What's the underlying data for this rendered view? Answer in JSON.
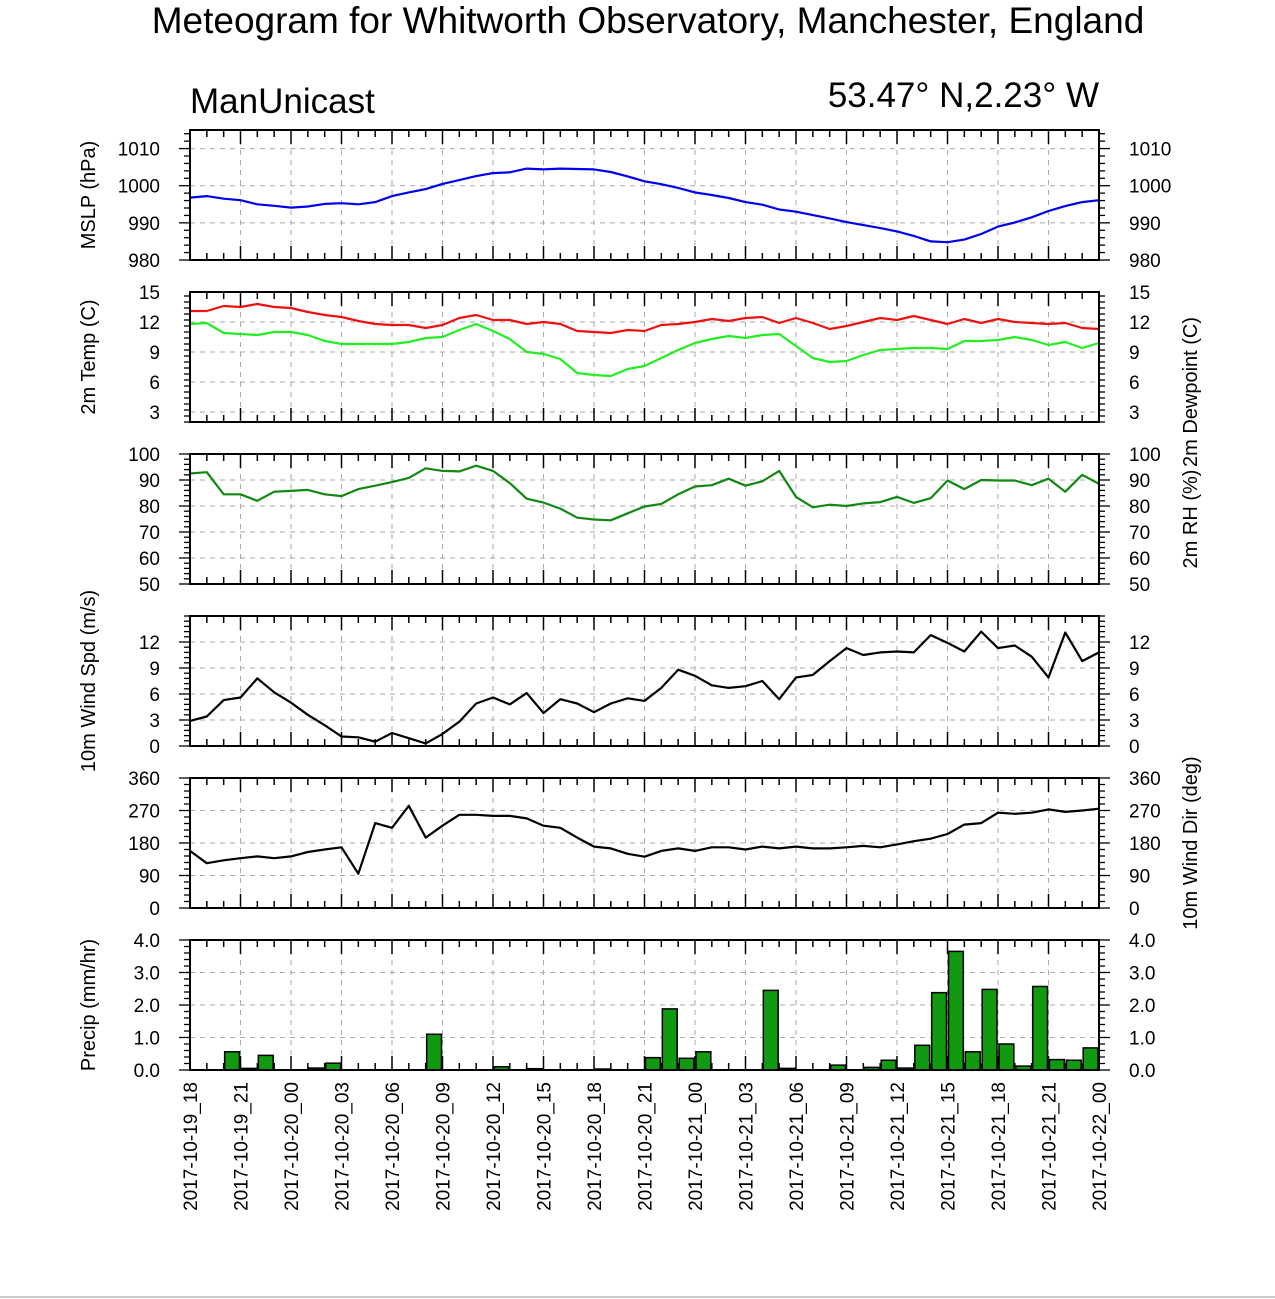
{
  "title": "Meteogram for Whitworth Observatory, Manchester, England",
  "source_label": "ManUnicast",
  "location": "53.47° N,2.23° W",
  "colors": {
    "mslp": "#0000ee",
    "temp": "#ee1111",
    "dewpoint": "#22ee22",
    "rh": "#118811",
    "wind": "#000000",
    "precip": "#119911"
  },
  "chart_data": [
    {
      "type": "line",
      "id": "mslp",
      "ylabel_left": "MSLP (hPa)",
      "ylabel_right": "",
      "ylim": [
        980,
        1015
      ],
      "yticks": [
        980,
        990,
        1000,
        1010
      ],
      "grid": true,
      "series": [
        {
          "color_key": "mslp",
          "x": [
            0,
            1,
            2,
            3,
            4,
            5,
            6,
            7,
            8,
            9,
            10,
            11,
            12,
            13,
            14,
            15,
            16,
            17,
            18,
            19,
            20,
            21,
            22,
            23,
            24,
            25,
            26,
            27,
            28,
            29,
            30,
            31,
            32,
            33,
            34,
            35,
            36,
            37,
            38,
            39,
            40,
            41,
            42,
            43,
            44,
            45,
            46,
            47,
            48,
            49,
            50,
            51,
            52,
            53,
            54
          ],
          "y": [
            996.8,
            997.2,
            996.5,
            996.1,
            995.0,
            994.6,
            994.1,
            994.4,
            995.1,
            995.3,
            995.0,
            995.6,
            997.2,
            998.2,
            999.1,
            1000.5,
            1001.5,
            1002.6,
            1003.4,
            1003.6,
            1004.6,
            1004.4,
            1004.6,
            1004.5,
            1004.4,
            1003.7,
            1002.5,
            1001.2,
            1000.4,
            999.4,
            998.2,
            997.5,
            996.7,
            995.6,
            994.9,
            993.6,
            993.0,
            992.1,
            991.2,
            990.2,
            989.4,
            988.6,
            987.7,
            986.5,
            985.0,
            984.8,
            985.5,
            987.0,
            989.0,
            990.1,
            991.5,
            993.2,
            994.5,
            995.6,
            996.1
          ]
        }
      ]
    },
    {
      "type": "line",
      "id": "temp",
      "ylabel_left": "2m Temp (C)",
      "ylabel_right": "2m Dewpoint (C)",
      "ylim": [
        2,
        15
      ],
      "yticks": [
        3,
        6,
        9,
        12,
        15
      ],
      "grid": true,
      "series": [
        {
          "color_key": "temp",
          "x": [
            0,
            1,
            2,
            3,
            4,
            5,
            6,
            7,
            8,
            9,
            10,
            11,
            12,
            13,
            14,
            15,
            16,
            17,
            18,
            19,
            20,
            21,
            22,
            23,
            24,
            25,
            26,
            27,
            28,
            29,
            30,
            31,
            32,
            33,
            34,
            35,
            36,
            37,
            38,
            39,
            40,
            41,
            42,
            43,
            44,
            45,
            46,
            47,
            48,
            49,
            50,
            51,
            52,
            53,
            54
          ],
          "y": [
            13.1,
            13.1,
            13.6,
            13.5,
            13.8,
            13.5,
            13.4,
            13.0,
            12.7,
            12.5,
            12.1,
            11.8,
            11.7,
            11.7,
            11.4,
            11.7,
            12.4,
            12.7,
            12.2,
            12.2,
            11.8,
            12.0,
            11.8,
            11.1,
            11.0,
            10.9,
            11.2,
            11.1,
            11.7,
            11.8,
            12.0,
            12.3,
            12.1,
            12.4,
            12.5,
            11.9,
            12.4,
            11.9,
            11.3,
            11.6,
            12.0,
            12.4,
            12.2,
            12.6,
            12.2,
            11.8,
            12.3,
            11.9,
            12.3,
            12.0,
            11.9,
            11.8,
            11.9,
            11.4,
            11.3
          ]
        },
        {
          "color_key": "dewpoint",
          "x": [
            0,
            1,
            2,
            3,
            4,
            5,
            6,
            7,
            8,
            9,
            10,
            11,
            12,
            13,
            14,
            15,
            16,
            17,
            18,
            19,
            20,
            21,
            22,
            23,
            24,
            25,
            26,
            27,
            28,
            29,
            30,
            31,
            32,
            33,
            34,
            35,
            36,
            37,
            38,
            39,
            40,
            41,
            42,
            43,
            44,
            45,
            46,
            47,
            48,
            49,
            50,
            51,
            52,
            53,
            54
          ],
          "y": [
            11.8,
            11.9,
            10.9,
            10.8,
            10.7,
            11.0,
            11.0,
            10.7,
            10.1,
            9.8,
            9.8,
            9.8,
            9.8,
            10.0,
            10.4,
            10.5,
            11.2,
            11.8,
            11.1,
            10.3,
            9.0,
            8.8,
            8.3,
            6.9,
            6.7,
            6.6,
            7.3,
            7.6,
            8.4,
            9.2,
            9.9,
            10.3,
            10.6,
            10.4,
            10.7,
            10.8,
            9.6,
            8.4,
            8.0,
            8.1,
            8.7,
            9.2,
            9.3,
            9.4,
            9.4,
            9.3,
            10.1,
            10.1,
            10.2,
            10.5,
            10.2,
            9.7,
            10.0,
            9.4,
            9.9
          ]
        }
      ]
    },
    {
      "type": "line",
      "id": "rh",
      "ylabel_left": "",
      "ylabel_right": "2m RH (%)",
      "ylim": [
        50,
        100
      ],
      "yticks": [
        50,
        60,
        70,
        80,
        90,
        100
      ],
      "grid": true,
      "series": [
        {
          "color_key": "rh",
          "x": [
            0,
            1,
            2,
            3,
            4,
            5,
            6,
            7,
            8,
            9,
            10,
            11,
            12,
            13,
            14,
            15,
            16,
            17,
            18,
            19,
            20,
            21,
            22,
            23,
            24,
            25,
            26,
            27,
            28,
            29,
            30,
            31,
            32,
            33,
            34,
            35,
            36,
            37,
            38,
            39,
            40,
            41,
            42,
            43,
            44,
            45,
            46,
            47,
            48,
            49,
            50,
            51,
            52,
            53,
            54
          ],
          "y": [
            92.5,
            93.0,
            84.5,
            84.5,
            82.0,
            85.5,
            85.8,
            86.2,
            84.5,
            83.8,
            86.5,
            87.8,
            89.2,
            90.8,
            94.5,
            93.5,
            93.3,
            95.5,
            93.5,
            88.8,
            82.8,
            81.3,
            79.0,
            75.5,
            74.8,
            74.5,
            77.2,
            79.8,
            80.8,
            84.5,
            87.5,
            88.0,
            90.5,
            87.8,
            89.5,
            93.5,
            83.5,
            79.5,
            80.5,
            80.0,
            81.0,
            81.5,
            83.5,
            81.2,
            83.0,
            89.8,
            86.5,
            90.0,
            89.8,
            89.8,
            88.0,
            90.5,
            85.5,
            92.0,
            88.5
          ]
        }
      ]
    },
    {
      "type": "line",
      "id": "wind_speed",
      "ylabel_left": "10m Wind Spd (m/s)",
      "ylabel_right": "",
      "ylim": [
        0,
        15
      ],
      "yticks": [
        0,
        3,
        6,
        9,
        12
      ],
      "grid": true,
      "series": [
        {
          "color_key": "wind",
          "x": [
            0,
            1,
            2,
            3,
            4,
            5,
            6,
            7,
            8,
            9,
            10,
            11,
            12,
            13,
            14,
            15,
            16,
            17,
            18,
            19,
            20,
            21,
            22,
            23,
            24,
            25,
            26,
            27,
            28,
            29,
            30,
            31,
            32,
            33,
            34,
            35,
            36,
            37,
            38,
            39,
            40,
            41,
            42,
            43,
            44,
            45,
            46,
            47,
            48,
            49,
            50,
            51,
            52,
            53,
            54
          ],
          "y": [
            2.9,
            3.4,
            5.3,
            5.6,
            7.8,
            6.2,
            5.0,
            3.6,
            2.4,
            1.1,
            1.0,
            0.5,
            1.5,
            0.9,
            0.3,
            1.4,
            2.8,
            4.9,
            5.6,
            4.8,
            6.1,
            3.8,
            5.4,
            4.9,
            3.9,
            4.9,
            5.5,
            5.2,
            6.7,
            8.8,
            8.1,
            7.0,
            6.7,
            6.9,
            7.5,
            5.4,
            7.9,
            8.2,
            9.8,
            11.3,
            10.5,
            10.8,
            10.9,
            10.8,
            12.8,
            11.9,
            10.9,
            13.2,
            11.3,
            11.6,
            10.3,
            7.9,
            13.1,
            9.8,
            10.8
          ]
        }
      ]
    },
    {
      "type": "line",
      "id": "wind_dir",
      "ylabel_left": "",
      "ylabel_right": "10m Wind Dir (deg)",
      "ylim": [
        0,
        360
      ],
      "yticks": [
        0,
        90,
        180,
        270,
        360
      ],
      "grid": true,
      "series": [
        {
          "color_key": "wind",
          "x": [
            0,
            1,
            2,
            3,
            4,
            5,
            6,
            7,
            8,
            9,
            10,
            11,
            12,
            13,
            14,
            15,
            16,
            17,
            18,
            19,
            20,
            21,
            22,
            23,
            24,
            25,
            26,
            27,
            28,
            29,
            30,
            31,
            32,
            33,
            34,
            35,
            36,
            37,
            38,
            39,
            40,
            41,
            42,
            43,
            44,
            45,
            46,
            47,
            48,
            49,
            50,
            51,
            52,
            53,
            54
          ],
          "y": [
            158,
            124,
            132,
            138,
            143,
            138,
            143,
            155,
            162,
            168,
            95,
            235,
            222,
            283,
            195,
            228,
            258,
            258,
            255,
            255,
            248,
            228,
            222,
            195,
            170,
            165,
            150,
            142,
            158,
            165,
            158,
            168,
            168,
            162,
            170,
            165,
            170,
            165,
            165,
            168,
            172,
            168,
            176,
            185,
            192,
            205,
            231,
            235,
            264,
            261,
            264,
            273,
            266,
            270,
            275
          ]
        }
      ]
    },
    {
      "type": "bar",
      "id": "precip",
      "ylabel_left": "Precip (mm/hr)",
      "ylabel_right": "",
      "ylim": [
        0,
        4
      ],
      "yticks": [
        "0.0",
        "1.0",
        "2.0",
        "3.0",
        "4.0"
      ],
      "grid": true,
      "x": [
        0,
        1,
        2,
        3,
        4,
        5,
        6,
        7,
        8,
        9,
        10,
        11,
        12,
        13,
        14,
        15,
        16,
        17,
        18,
        19,
        20,
        21,
        22,
        23,
        24,
        25,
        26,
        27,
        28,
        29,
        30,
        31,
        32,
        33,
        34,
        35,
        36,
        37,
        38,
        39,
        40,
        41,
        42,
        43,
        44,
        45,
        46,
        47,
        48,
        49,
        50,
        51,
        52,
        53
      ],
      "values": [
        0,
        0,
        0.56,
        0.05,
        0.45,
        0,
        0,
        0.06,
        0.21,
        0,
        0,
        0,
        0,
        0,
        1.1,
        0,
        0,
        0,
        0.1,
        0,
        0.04,
        0,
        0,
        0,
        0.03,
        0,
        0,
        0.38,
        1.88,
        0.36,
        0.56,
        0,
        0,
        0,
        2.45,
        0.05,
        0,
        0,
        0.15,
        0,
        0.08,
        0.3,
        0.06,
        0.76,
        2.38,
        3.65,
        0.56,
        2.48,
        0.8,
        0.12,
        2.57,
        0.32,
        0.3,
        0.68
      ]
    }
  ],
  "x_axis": {
    "tick_labels": [
      "2017-10-19_18",
      "2017-10-19_21",
      "2017-10-20_00",
      "2017-10-20_03",
      "2017-10-20_06",
      "2017-10-20_09",
      "2017-10-20_12",
      "2017-10-20_15",
      "2017-10-20_18",
      "2017-10-20_21",
      "2017-10-21_00",
      "2017-10-21_03",
      "2017-10-21_06",
      "2017-10-21_09",
      "2017-10-21_12",
      "2017-10-21_15",
      "2017-10-21_18",
      "2017-10-21_21",
      "2017-10-22_00"
    ],
    "hours_between_labels": 3
  }
}
